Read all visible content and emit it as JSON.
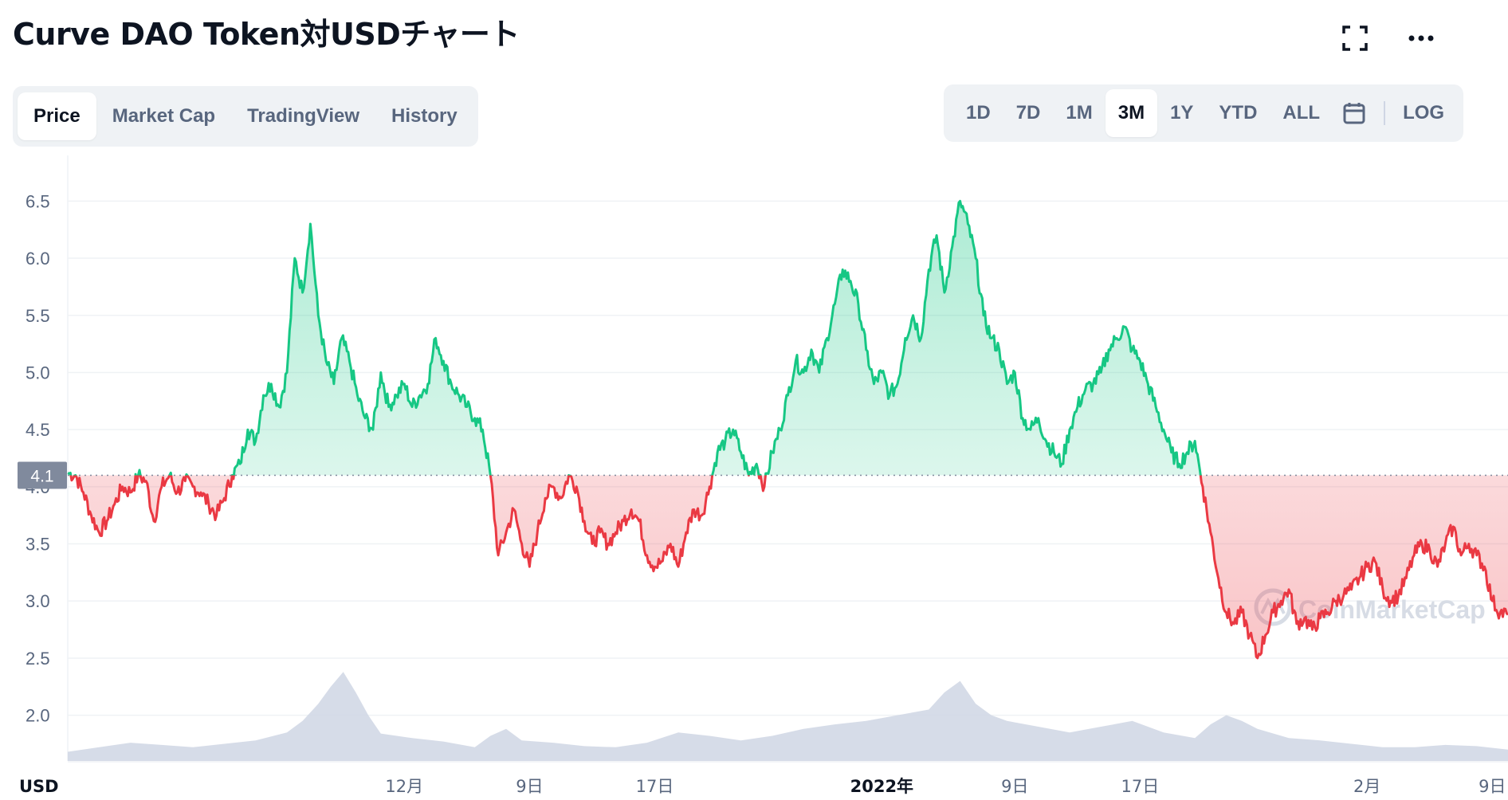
{
  "header": {
    "title": "Curve DAO Token対USDチャート",
    "fullscreen_icon": "fullscreen-icon",
    "more_icon": "more-dots-icon"
  },
  "tabs": [
    {
      "label": "Price",
      "active": true
    },
    {
      "label": "Market Cap",
      "active": false
    },
    {
      "label": "TradingView",
      "active": false
    },
    {
      "label": "History",
      "active": false
    }
  ],
  "ranges": [
    {
      "label": "1D",
      "active": false
    },
    {
      "label": "7D",
      "active": false
    },
    {
      "label": "1M",
      "active": false
    },
    {
      "label": "3M",
      "active": true
    },
    {
      "label": "1Y",
      "active": false
    },
    {
      "label": "YTD",
      "active": false
    },
    {
      "label": "ALL",
      "active": false
    }
  ],
  "calendar_icon": "calendar-icon",
  "log_label": "LOG",
  "watermark": "CoinMarketCap",
  "colors": {
    "up": "#16c784",
    "down": "#ea3943",
    "volume": "#cfd6e4",
    "grid": "#eff2f5",
    "baseline_tag": "#808a9d"
  },
  "chart_data": {
    "type": "area",
    "currency_label": "USD",
    "baseline": 4.1,
    "baseline_label": "4.1",
    "ylim": [
      1.6,
      6.9
    ],
    "yticks": [
      2.0,
      2.5,
      3.0,
      3.5,
      4.0,
      4.5,
      5.0,
      5.5,
      6.0,
      6.5
    ],
    "ytick_labels": [
      "2.0",
      "2.5",
      "3.0",
      "3.5",
      "4.0",
      "4.5",
      "5.0",
      "5.5",
      "6.0",
      "6.5"
    ],
    "x_range": [
      0,
      92
    ],
    "xticks": [
      {
        "x": 21.5,
        "label": "12月",
        "bold": false
      },
      {
        "x": 29.5,
        "label": "9日",
        "bold": false
      },
      {
        "x": 37.5,
        "label": "17日",
        "bold": false
      },
      {
        "x": 52.0,
        "label": "2022年",
        "bold": true
      },
      {
        "x": 60.5,
        "label": "9日",
        "bold": false
      },
      {
        "x": 68.5,
        "label": "17日",
        "bold": false
      },
      {
        "x": 83.0,
        "label": "2月",
        "bold": false
      },
      {
        "x": 91.0,
        "label": "9日",
        "bold": false
      }
    ],
    "price": [
      [
        0,
        4.12
      ],
      [
        0.5,
        4.1
      ],
      [
        1,
        3.95
      ],
      [
        1.5,
        3.75
      ],
      [
        2,
        3.6
      ],
      [
        2.5,
        3.7
      ],
      [
        3,
        3.85
      ],
      [
        3.5,
        4.0
      ],
      [
        4,
        3.95
      ],
      [
        4.5,
        4.1
      ],
      [
        5,
        4.05
      ],
      [
        5.5,
        3.7
      ],
      [
        6,
        4.0
      ],
      [
        6.5,
        4.1
      ],
      [
        7,
        3.95
      ],
      [
        7.5,
        4.05
      ],
      [
        8,
        4.0
      ],
      [
        8.5,
        3.95
      ],
      [
        9,
        3.85
      ],
      [
        9.5,
        3.75
      ],
      [
        10,
        3.9
      ],
      [
        10.5,
        4.1
      ],
      [
        11,
        4.2
      ],
      [
        11.5,
        4.5
      ],
      [
        12,
        4.4
      ],
      [
        12.5,
        4.8
      ],
      [
        13,
        4.9
      ],
      [
        13.5,
        4.7
      ],
      [
        14,
        5.0
      ],
      [
        14.5,
        6.0
      ],
      [
        15,
        5.7
      ],
      [
        15.5,
        6.3
      ],
      [
        16,
        5.5
      ],
      [
        16.5,
        5.1
      ],
      [
        17,
        4.9
      ],
      [
        17.5,
        5.3
      ],
      [
        18,
        5.1
      ],
      [
        18.5,
        4.8
      ],
      [
        19,
        4.6
      ],
      [
        19.5,
        4.5
      ],
      [
        20,
        5.0
      ],
      [
        20.5,
        4.7
      ],
      [
        21,
        4.8
      ],
      [
        21.5,
        4.9
      ],
      [
        22,
        4.7
      ],
      [
        22.5,
        4.8
      ],
      [
        23,
        4.9
      ],
      [
        23.5,
        5.3
      ],
      [
        24,
        5.1
      ],
      [
        24.5,
        4.9
      ],
      [
        25,
        4.8
      ],
      [
        25.5,
        4.7
      ],
      [
        26,
        4.6
      ],
      [
        26.5,
        4.5
      ],
      [
        27,
        4.1
      ],
      [
        27.5,
        3.4
      ],
      [
        28,
        3.6
      ],
      [
        28.5,
        3.8
      ],
      [
        29,
        3.5
      ],
      [
        29.5,
        3.3
      ],
      [
        30,
        3.6
      ],
      [
        30.5,
        3.9
      ],
      [
        31,
        4.0
      ],
      [
        31.5,
        3.9
      ],
      [
        32,
        4.1
      ],
      [
        32.5,
        4.0
      ],
      [
        33,
        3.7
      ],
      [
        33.5,
        3.5
      ],
      [
        34,
        3.6
      ],
      [
        34.5,
        3.5
      ],
      [
        35,
        3.6
      ],
      [
        35.5,
        3.7
      ],
      [
        36,
        3.8
      ],
      [
        36.5,
        3.7
      ],
      [
        37,
        3.4
      ],
      [
        37.5,
        3.3
      ],
      [
        38,
        3.35
      ],
      [
        38.5,
        3.5
      ],
      [
        39,
        3.3
      ],
      [
        39.5,
        3.6
      ],
      [
        40,
        3.8
      ],
      [
        40.5,
        3.75
      ],
      [
        41,
        4.0
      ],
      [
        41.5,
        4.3
      ],
      [
        42,
        4.4
      ],
      [
        42.5,
        4.5
      ],
      [
        43,
        4.3
      ],
      [
        43.5,
        4.1
      ],
      [
        44,
        4.2
      ],
      [
        44.5,
        4.0
      ],
      [
        45,
        4.3
      ],
      [
        45.5,
        4.5
      ],
      [
        46,
        4.8
      ],
      [
        46.5,
        5.1
      ],
      [
        47,
        5.0
      ],
      [
        47.5,
        5.2
      ],
      [
        48,
        5.0
      ],
      [
        48.5,
        5.3
      ],
      [
        49,
        5.6
      ],
      [
        49.5,
        5.9
      ],
      [
        50,
        5.8
      ],
      [
        50.5,
        5.6
      ],
      [
        51,
        5.2
      ],
      [
        51.5,
        4.9
      ],
      [
        52,
        5.0
      ],
      [
        52.5,
        4.8
      ],
      [
        53,
        4.9
      ],
      [
        53.5,
        5.3
      ],
      [
        54,
        5.5
      ],
      [
        54.5,
        5.3
      ],
      [
        55,
        5.9
      ],
      [
        55.5,
        6.2
      ],
      [
        56,
        5.7
      ],
      [
        56.5,
        6.1
      ],
      [
        57,
        6.5
      ],
      [
        57.5,
        6.3
      ],
      [
        58,
        6.0
      ],
      [
        58.5,
        5.5
      ],
      [
        59,
        5.3
      ],
      [
        59.5,
        5.2
      ],
      [
        60,
        4.9
      ],
      [
        60.5,
        5.0
      ],
      [
        61,
        4.6
      ],
      [
        61.5,
        4.5
      ],
      [
        62,
        4.6
      ],
      [
        62.5,
        4.4
      ],
      [
        63,
        4.3
      ],
      [
        63.5,
        4.2
      ],
      [
        64,
        4.5
      ],
      [
        64.5,
        4.7
      ],
      [
        65,
        4.85
      ],
      [
        65.5,
        4.9
      ],
      [
        66,
        5.0
      ],
      [
        66.5,
        5.2
      ],
      [
        67,
        5.3
      ],
      [
        67.5,
        5.4
      ],
      [
        68,
        5.2
      ],
      [
        68.5,
        5.1
      ],
      [
        69,
        4.9
      ],
      [
        69.5,
        4.7
      ],
      [
        70,
        4.5
      ],
      [
        70.5,
        4.3
      ],
      [
        71,
        4.2
      ],
      [
        71.5,
        4.3
      ],
      [
        72,
        4.4
      ],
      [
        72.5,
        4.0
      ],
      [
        73,
        3.6
      ],
      [
        73.5,
        3.2
      ],
      [
        74,
        2.9
      ],
      [
        74.5,
        2.8
      ],
      [
        75,
        2.9
      ],
      [
        75.5,
        2.7
      ],
      [
        76,
        2.5
      ],
      [
        76.5,
        2.7
      ],
      [
        77,
        2.9
      ],
      [
        77.5,
        3.0
      ],
      [
        78,
        3.1
      ],
      [
        78.5,
        2.8
      ],
      [
        79,
        2.85
      ],
      [
        79.5,
        2.75
      ],
      [
        80,
        2.85
      ],
      [
        80.5,
        2.9
      ],
      [
        81,
        3.0
      ],
      [
        81.5,
        3.05
      ],
      [
        82,
        3.1
      ],
      [
        82.5,
        3.2
      ],
      [
        83,
        3.3
      ],
      [
        83.5,
        3.35
      ],
      [
        84,
        3.1
      ],
      [
        84.5,
        3.0
      ],
      [
        85,
        3.05
      ],
      [
        85.5,
        3.2
      ],
      [
        86,
        3.4
      ],
      [
        86.5,
        3.5
      ],
      [
        87,
        3.45
      ],
      [
        87.5,
        3.3
      ],
      [
        88,
        3.5
      ],
      [
        88.5,
        3.65
      ],
      [
        89,
        3.4
      ],
      [
        89.5,
        3.5
      ],
      [
        90,
        3.4
      ],
      [
        90.5,
        3.3
      ],
      [
        91,
        3.0
      ],
      [
        91.5,
        2.9
      ],
      [
        92,
        2.88
      ]
    ],
    "volume": [
      [
        0,
        1.68
      ],
      [
        2,
        1.72
      ],
      [
        4,
        1.76
      ],
      [
        6,
        1.74
      ],
      [
        8,
        1.72
      ],
      [
        10,
        1.75
      ],
      [
        12,
        1.78
      ],
      [
        14,
        1.85
      ],
      [
        15,
        1.95
      ],
      [
        16,
        2.1
      ],
      [
        16.8,
        2.25
      ],
      [
        17.6,
        2.38
      ],
      [
        18.4,
        2.2
      ],
      [
        19.2,
        2.0
      ],
      [
        20,
        1.84
      ],
      [
        22,
        1.8
      ],
      [
        24,
        1.77
      ],
      [
        26,
        1.72
      ],
      [
        27,
        1.82
      ],
      [
        28,
        1.88
      ],
      [
        29,
        1.78
      ],
      [
        31,
        1.76
      ],
      [
        33,
        1.73
      ],
      [
        35,
        1.72
      ],
      [
        37,
        1.76
      ],
      [
        39,
        1.85
      ],
      [
        41,
        1.82
      ],
      [
        43,
        1.78
      ],
      [
        45,
        1.82
      ],
      [
        47,
        1.88
      ],
      [
        49,
        1.92
      ],
      [
        51,
        1.95
      ],
      [
        53,
        2.0
      ],
      [
        55,
        2.05
      ],
      [
        56,
        2.2
      ],
      [
        57,
        2.3
      ],
      [
        58,
        2.1
      ],
      [
        59,
        2.0
      ],
      [
        60,
        1.95
      ],
      [
        62,
        1.9
      ],
      [
        64,
        1.85
      ],
      [
        66,
        1.9
      ],
      [
        68,
        1.95
      ],
      [
        70,
        1.85
      ],
      [
        72,
        1.8
      ],
      [
        73,
        1.92
      ],
      [
        74,
        2.0
      ],
      [
        75,
        1.95
      ],
      [
        76,
        1.88
      ],
      [
        78,
        1.8
      ],
      [
        80,
        1.78
      ],
      [
        82,
        1.75
      ],
      [
        84,
        1.72
      ],
      [
        86,
        1.72
      ],
      [
        88,
        1.74
      ],
      [
        90,
        1.73
      ],
      [
        92,
        1.7
      ]
    ]
  }
}
